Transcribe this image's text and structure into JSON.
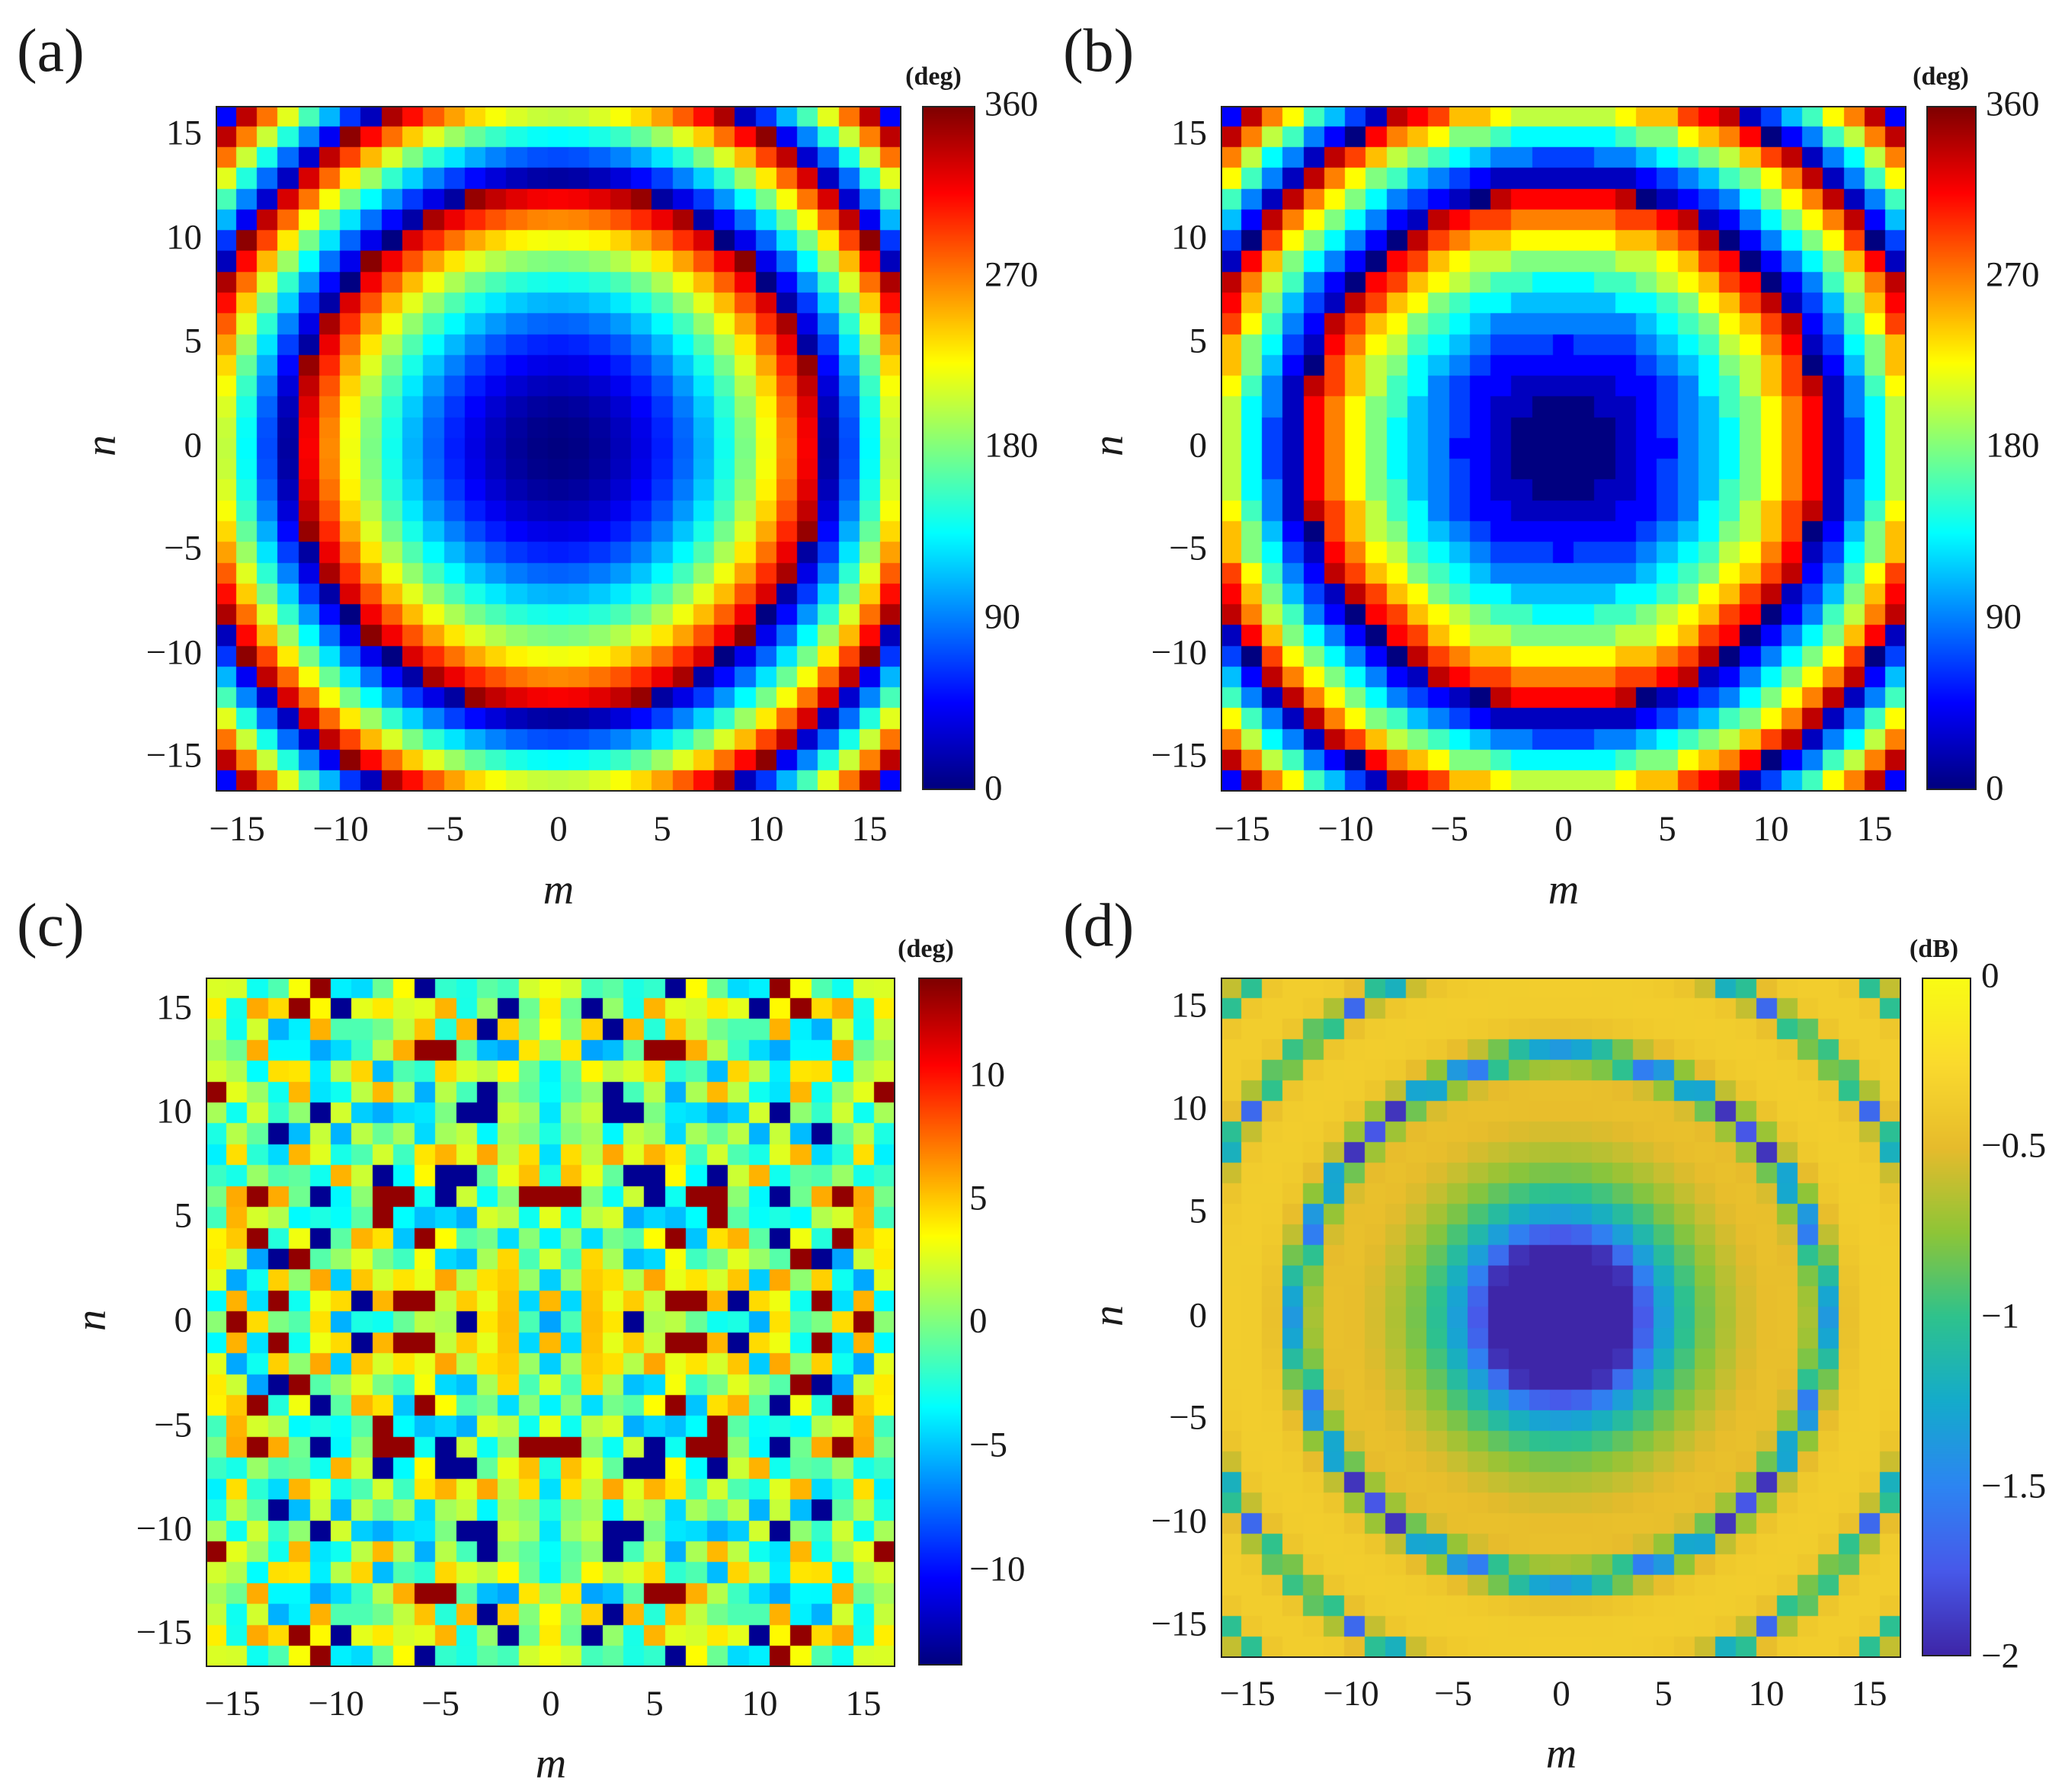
{
  "chart_data": [
    {
      "panel_label": "(a)",
      "type": "heatmap",
      "xlabel": "m",
      "ylabel": "n",
      "x_range": [
        -16,
        16
      ],
      "y_range": [
        -16,
        16
      ],
      "x_ticks": [
        "−15",
        "−10",
        "−5",
        "0",
        "5",
        "10",
        "15"
      ],
      "y_ticks": [
        "15",
        "10",
        "5",
        "0",
        "−5",
        "−10",
        "−15"
      ],
      "colormap": "jet",
      "clim": [
        0,
        360
      ],
      "colorbar_unit": "(deg)",
      "colorbar_ticks": [
        "360",
        "270",
        "180",
        "90",
        "0"
      ],
      "field": "phase = (2.2 * (m^2 + n^2)) mod 360, concentric rings centered at (0,0)"
    },
    {
      "panel_label": "(b)",
      "type": "heatmap",
      "xlabel": "m",
      "ylabel": "n",
      "x_range": [
        -16,
        16
      ],
      "y_range": [
        -16,
        16
      ],
      "x_ticks": [
        "−15",
        "−10",
        "−5",
        "0",
        "5",
        "10",
        "15"
      ],
      "y_ticks": [
        "15",
        "10",
        "5",
        "0",
        "−5",
        "−10",
        "−15"
      ],
      "colormap": "jet",
      "clim": [
        0,
        360
      ],
      "colorbar_unit": "(deg)",
      "colorbar_ticks": [
        "360",
        "270",
        "180",
        "90",
        "0"
      ],
      "field": "quantized phase profile, same rings as (a)"
    },
    {
      "panel_label": "(c)",
      "type": "heatmap",
      "xlabel": "m",
      "ylabel": "n",
      "x_range": [
        -16,
        16
      ],
      "y_range": [
        -16,
        16
      ],
      "x_ticks": [
        "−15",
        "−10",
        "−5",
        "0",
        "5",
        "10",
        "15"
      ],
      "y_ticks": [
        "15",
        "10",
        "5",
        "0",
        "−5",
        "−10",
        "−15"
      ],
      "colormap": "jet",
      "clim": [
        -14,
        14
      ],
      "colorbar_unit": "(deg)",
      "colorbar_ticks": [
        "10",
        "5",
        "0",
        "−5",
        "−10"
      ],
      "field": "phase error (b) − (a), symmetric scattered values within ±14"
    },
    {
      "panel_label": "(d)",
      "type": "heatmap",
      "xlabel": "m",
      "ylabel": "n",
      "x_range": [
        -16,
        16
      ],
      "y_range": [
        -16,
        16
      ],
      "x_ticks": [
        "−15",
        "−10",
        "−5",
        "0",
        "5",
        "10",
        "15"
      ],
      "y_ticks": [
        "15",
        "10",
        "5",
        "0",
        "−5",
        "−10",
        "−15"
      ],
      "colormap": "parula",
      "clim": [
        -2,
        0
      ],
      "colorbar_unit": "(dB)",
      "colorbar_ticks": [
        "0",
        "−0.5",
        "−1",
        "−1.5",
        "−2"
      ],
      "field": "amplitude in dB, low (~−2) at center, ring-shaped dips near phase wraps"
    }
  ]
}
